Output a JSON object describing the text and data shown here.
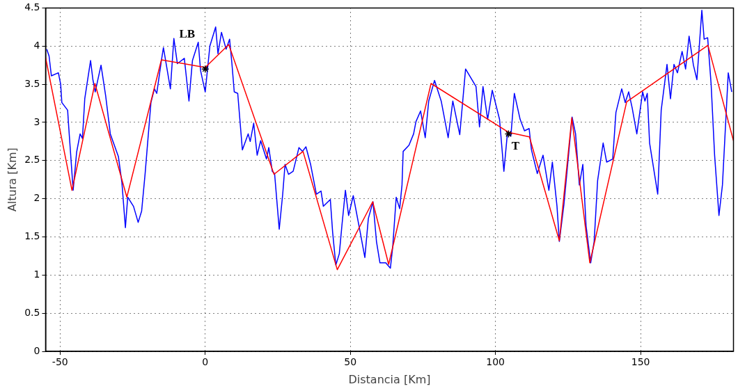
{
  "chart_data": {
    "type": "line",
    "xlabel": "Distancia [Km]",
    "ylabel": "Altura [Km]",
    "xlim": [
      -55,
      182
    ],
    "xticks": [
      -50,
      0,
      50,
      100,
      150
    ],
    "ylim": [
      0,
      4.5
    ],
    "yticks": [
      0,
      0.5,
      1,
      1.5,
      2,
      2.5,
      3,
      3.5,
      4,
      4.5
    ],
    "grid": true,
    "line_style": "solid",
    "series": [
      {
        "color": "#0000ff",
        "x": [
          -54.6,
          -53.8,
          -53,
          -50.6,
          -49.8,
          -49.4,
          -47.4,
          -47.1,
          -45.9,
          -45.5,
          -44.3,
          -43.1,
          -42.3,
          -41.5,
          -39.5,
          -38.7,
          -37.9,
          -35.9,
          -34.3,
          -32.7,
          -29.9,
          -28.7,
          -27.5,
          -26.7,
          -24.7,
          -23.1,
          -21.9,
          -20.7,
          -18.7,
          -17.5,
          -16.7,
          -15.1,
          -14.4,
          -12,
          -10.8,
          -9.6,
          -7.2,
          -5.6,
          -4.4,
          -2.4,
          -1.6,
          0,
          1.6,
          3.6,
          4.4,
          5.6,
          7.2,
          8.4,
          9.2,
          10,
          11.2,
          12.8,
          14.8,
          15.5,
          16.7,
          17.9,
          19.1,
          21.1,
          21.9,
          23.1,
          23.9,
          25.5,
          26.7,
          27.5,
          28.7,
          30.3,
          32.3,
          33.5,
          34.7,
          36.3,
          38.3,
          39.9,
          40.7,
          43.1,
          43.9,
          45,
          46.2,
          47.1,
          48.3,
          49.4,
          51,
          53.4,
          55,
          56.2,
          57.8,
          59,
          60.2,
          62.2,
          63.8,
          64.6,
          65.8,
          67,
          67.8,
          68.2,
          70.2,
          71.8,
          72.6,
          74.2,
          75.8,
          77,
          79,
          81.3,
          83.7,
          85.3,
          87.7,
          89.7,
          93.3,
          94.5,
          95.7,
          97.3,
          98.9,
          101.4,
          102.9,
          104.1,
          105.3,
          106.5,
          108.5,
          110,
          111.6,
          112.4,
          114.4,
          116.4,
          118.4,
          119.6,
          121.2,
          122,
          123.6,
          126.4,
          127.6,
          128.9,
          130.1,
          131.2,
          132.8,
          134,
          135.2,
          137.1,
          138.3,
          140.4,
          141.5,
          143.5,
          144.7,
          145.9,
          147.1,
          148.7,
          150.7,
          151.5,
          152.3,
          153.1,
          155.9,
          157.1,
          159.1,
          160.3,
          161.5,
          162.7,
          164.3,
          165.5,
          166.7,
          168.2,
          169.4,
          171.1,
          171.9,
          173.1,
          174.3,
          175.5,
          177,
          178.2,
          180.2,
          181.4
        ],
        "values": [
          3.96,
          3.87,
          3.61,
          3.65,
          3.5,
          3.26,
          3.16,
          2.98,
          2.33,
          2.11,
          2.61,
          2.85,
          2.79,
          3.31,
          3.81,
          3.56,
          3.4,
          3.75,
          3.35,
          2.85,
          2.55,
          2.21,
          1.62,
          2.02,
          1.9,
          1.69,
          1.84,
          2.33,
          3.26,
          3.44,
          3.38,
          3.81,
          3.98,
          3.44,
          4.1,
          3.77,
          3.84,
          3.28,
          3.81,
          4.05,
          3.68,
          3.4,
          4,
          4.25,
          3.9,
          4.18,
          3.96,
          4.09,
          3.77,
          3.4,
          3.38,
          2.64,
          2.85,
          2.75,
          2.99,
          2.57,
          2.76,
          2.52,
          2.67,
          2.36,
          2.33,
          1.6,
          2.06,
          2.45,
          2.32,
          2.36,
          2.67,
          2.62,
          2.68,
          2.45,
          2.06,
          2.1,
          1.9,
          1.99,
          1.56,
          1.13,
          1.28,
          1.65,
          2.11,
          1.78,
          2.04,
          1.56,
          1.23,
          1.74,
          1.96,
          1.44,
          1.16,
          1.16,
          1.09,
          1.37,
          2.02,
          1.87,
          2.18,
          2.62,
          2.7,
          2.85,
          3.01,
          3.15,
          2.8,
          3.28,
          3.55,
          3.28,
          2.8,
          3.28,
          2.84,
          3.7,
          3.47,
          2.94,
          3.47,
          3.04,
          3.42,
          3.04,
          2.36,
          2.85,
          2.82,
          3.38,
          3.04,
          2.89,
          2.92,
          2.64,
          2.33,
          2.57,
          2.11,
          2.48,
          1.9,
          1.44,
          1.93,
          3.07,
          2.85,
          2.18,
          2.45,
          1.65,
          1.16,
          1.44,
          2.24,
          2.73,
          2.48,
          2.52,
          3.13,
          3.44,
          3.26,
          3.4,
          3.19,
          2.85,
          3.4,
          3.28,
          3.38,
          2.73,
          2.06,
          3.16,
          3.76,
          3.31,
          3.76,
          3.65,
          3.93,
          3.7,
          4.13,
          3.75,
          3.56,
          4.47,
          4.09,
          4.11,
          3.5,
          2.57,
          1.78,
          2.18,
          3.65,
          3.4
        ]
      },
      {
        "color": "#ff0000",
        "x": [
          -55,
          -45.9,
          -38,
          -27,
          -15.1,
          0,
          8.1,
          23.7,
          33.7,
          45.5,
          57.7,
          63.2,
          77.8,
          104.5,
          111.7,
          122,
          126.3,
          132.5,
          145.2,
          173.2,
          182
        ],
        "values": [
          3.85,
          2.11,
          3.51,
          2.02,
          3.82,
          3.72,
          4.02,
          2.32,
          2.62,
          1.07,
          1.96,
          1.14,
          3.51,
          2.87,
          2.81,
          1.45,
          3.06,
          1.16,
          3.27,
          4.01,
          2.76
        ]
      },
      {
        "type": "scatter",
        "color": "#000000",
        "marker": "cross",
        "x": [
          0,
          104.5
        ],
        "values": [
          3.7,
          2.85
        ]
      }
    ],
    "annotations": [
      {
        "text": "LB",
        "x": 0,
        "y": 3.7
      },
      {
        "text": "T",
        "x": 104.5,
        "y": 2.85
      }
    ]
  }
}
